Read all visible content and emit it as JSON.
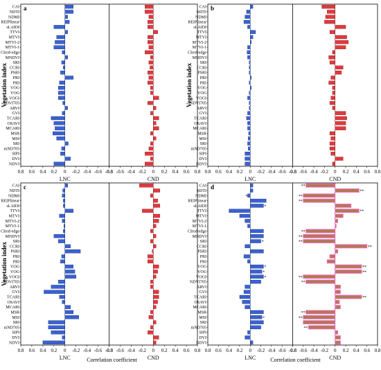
{
  "indices": [
    "CAI",
    "NDTI",
    "NDMI",
    "REIPlinear",
    "sLAIDI",
    "TTVI",
    "MTVI",
    "MTVI-2",
    "MTVI-1",
    "CIred-edge",
    "MNDVI",
    "SRI",
    "CCRI",
    "PSRI",
    "PRI",
    "PRI",
    "VOG",
    "VOG",
    "VOGI",
    "NDVI705",
    "ARVI",
    "GVI",
    "TCARI",
    "OSAVI",
    "MCARI",
    "MSR",
    "MSI",
    "SRI",
    "mND705",
    "SIPI",
    "DVI",
    "NDVI"
  ],
  "labels": {
    "ylabel": "Vegetation index",
    "lnc": "LNC",
    "cnd": "CND",
    "corr": "Correlation coefficient"
  },
  "ticks": [
    "0.8",
    "0.6",
    "0.4",
    "0.2",
    "0",
    "-0.2",
    "-0.4",
    "-0.6",
    "-0.8",
    "-0.8",
    "-0.6",
    "-0.4",
    "-0.2",
    "0",
    "0.2",
    "0.4",
    "0.6",
    "0.8"
  ],
  "colors": {
    "lnc": "#3a62cf",
    "cnd": "#e0393e",
    "cnd_d": "#b07a55",
    "star": "#ff00ff"
  },
  "chart_data": [
    {
      "panel": "a",
      "type": "bar",
      "xlim": [
        0.8,
        -0.8
      ],
      "show_ylabel": true,
      "show_corr_label": false,
      "lnc": [
        -0.15,
        -0.15,
        -0.05,
        -0.08,
        0.2,
        -0.05,
        0.15,
        0.18,
        0.2,
        0.05,
        -0.05,
        0.06,
        0.03,
        0.08,
        -0.15,
        0.1,
        0.12,
        0.12,
        0.12,
        0.04,
        -0.05,
        0.05,
        0.25,
        0.2,
        0.18,
        0.22,
        0.15,
        -0.06,
        0.06,
        0.08,
        -0.1,
        0.2
      ],
      "cnd": [
        -0.15,
        -0.15,
        -0.08,
        -0.1,
        -0.1,
        0.08,
        -0.1,
        -0.1,
        -0.08,
        -0.15,
        -0.05,
        -0.08,
        -0.06,
        -0.1,
        -0.08,
        -0.1,
        -0.05,
        -0.05,
        0.1,
        -0.1,
        0.05,
        -0.05,
        0.1,
        0.05,
        0.1,
        -0.05,
        0.05,
        -0.05,
        -0.08,
        -0.15,
        -0.05,
        -0.15
      ],
      "stars_lnc": [],
      "stars_cnd": []
    },
    {
      "panel": "b",
      "type": "bar",
      "xlim": [
        0.8,
        -0.8
      ],
      "show_ylabel": true,
      "show_corr_label": false,
      "lnc": [
        -0.05,
        0.07,
        0.1,
        0.12,
        0.05,
        -0.1,
        -0.05,
        -0.02,
        0.05,
        0.06,
        0.05,
        0.02,
        0.02,
        0.02,
        -0.02,
        0.02,
        -0.02,
        0.02,
        0.05,
        0.02,
        0.02,
        0.05,
        0.07,
        0.05,
        0.05,
        0.03,
        0.04,
        0.05,
        0.04,
        0.1,
        0.1,
        0.1
      ],
      "cnd": [
        -0.25,
        -0.15,
        -0.18,
        -0.2,
        0.2,
        -0.1,
        0.22,
        0.25,
        0.2,
        -0.05,
        -0.12,
        -0.1,
        0.15,
        0.12,
        -0.08,
        -0.12,
        -0.05,
        -0.05,
        -0.08,
        -0.1,
        -0.05,
        0.2,
        0.22,
        0.2,
        0.2,
        -0.1,
        -0.08,
        -0.1,
        -0.1,
        -0.08,
        0.15,
        -0.05
      ],
      "stars_lnc": [],
      "stars_cnd": []
    },
    {
      "panel": "c",
      "type": "bar",
      "xlim": [
        0.8,
        -0.8
      ],
      "show_ylabel": true,
      "show_corr_label": true,
      "lnc": [
        -0.05,
        0.04,
        0.05,
        0.03,
        0.03,
        -0.15,
        0.1,
        0.05,
        0.02,
        0.03,
        0.2,
        0.12,
        -0.1,
        -0.28,
        0.06,
        0.08,
        -0.15,
        -0.18,
        -0.2,
        0.12,
        0.25,
        0.38,
        0.1,
        0.05,
        -0.1,
        -0.15,
        -0.25,
        0.3,
        0.3,
        0.25,
        0.05,
        0.4
      ],
      "cnd": [
        -0.25,
        0.12,
        -0.05,
        0.08,
        0.12,
        -0.2,
        0.12,
        0.1,
        0.05,
        -0.05,
        0.05,
        -0.05,
        0.05,
        -0.02,
        -0.1,
        -0.1,
        0.1,
        0.08,
        0.05,
        -0.05,
        -0.05,
        0.1,
        0.1,
        0.08,
        0.05,
        -0.05,
        -0.08,
        0.05,
        -0.05,
        -0.1,
        0.1,
        0.05
      ],
      "stars_lnc": [],
      "stars_cnd": []
    },
    {
      "panel": "d",
      "type": "bar",
      "xlim": [
        0.8,
        -0.8
      ],
      "show_ylabel": false,
      "show_corr_label": true,
      "lnc": [
        -0.05,
        -0.05,
        0.05,
        -0.3,
        -0.25,
        0.4,
        0.2,
        0.1,
        0.05,
        -0.25,
        -0.25,
        -0.2,
        0.1,
        -0.25,
        0.12,
        0.05,
        -0.25,
        -0.22,
        -0.25,
        -0.2,
        0.1,
        0.12,
        0.2,
        0.15,
        0.1,
        -0.25,
        -0.22,
        -0.25,
        -0.2,
        0.05,
        0.1,
        -0.05
      ],
      "cnd": [
        -0.55,
        0.45,
        -0.6,
        -0.6,
        0.3,
        0.45,
        0.15,
        0.05,
        0.02,
        -0.55,
        -0.6,
        -0.6,
        0.6,
        0.05,
        -0.1,
        -0.15,
        0.5,
        0.5,
        -0.6,
        -0.55,
        0.1,
        0.1,
        0.5,
        0.08,
        0.1,
        -0.55,
        -0.6,
        -0.6,
        -0.5,
        0.05,
        0.1,
        0.1
      ],
      "stars_lnc": [
        2,
        4,
        11,
        16,
        17,
        18,
        26
      ],
      "stars_cnd": [
        0,
        1,
        2,
        3,
        5,
        9,
        10,
        11,
        12,
        16,
        17,
        18,
        19,
        22,
        25,
        26,
        28
      ]
    }
  ]
}
